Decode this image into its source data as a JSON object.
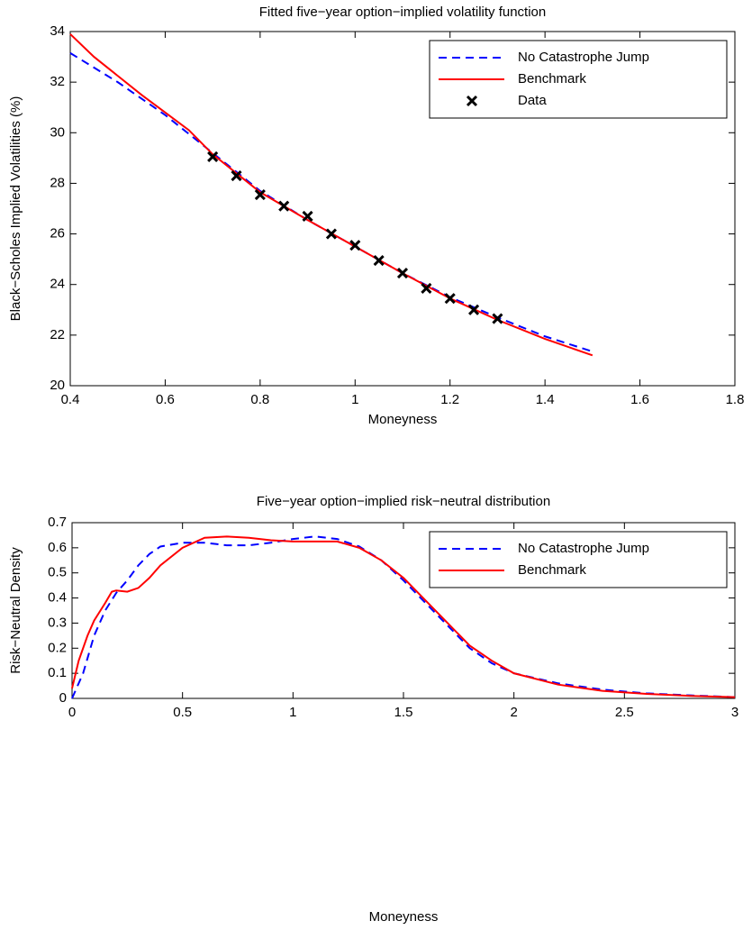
{
  "chart_data": [
    {
      "type": "line",
      "title": "Fitted five−year option−implied volatility function",
      "x_label": "Moneyness",
      "y_label": "Black−Scholes Implied Volatilities (%)",
      "xlim": [
        0.4,
        1.8
      ],
      "ylim": [
        20,
        34
      ],
      "xticks": [
        0.4,
        0.6,
        0.8,
        1,
        1.2,
        1.4,
        1.6,
        1.8
      ],
      "yticks": [
        20,
        22,
        24,
        26,
        28,
        30,
        32,
        34
      ],
      "legend": "upper right",
      "grid": false,
      "series": [
        {
          "name": "No Catastrophe Jump",
          "color": "#0000ff",
          "style": "dashed",
          "x": [
            0.4,
            0.5,
            0.6,
            0.7,
            0.8,
            0.9,
            1.0,
            1.1,
            1.2,
            1.3,
            1.4,
            1.5
          ],
          "values": [
            33.15,
            32.0,
            30.7,
            29.2,
            27.7,
            26.55,
            25.5,
            24.45,
            23.5,
            22.7,
            21.95,
            21.35
          ]
        },
        {
          "name": "Benchmark",
          "color": "#ff0000",
          "style": "solid",
          "x": [
            0.4,
            0.45,
            0.5,
            0.55,
            0.6,
            0.65,
            0.7,
            0.8,
            0.9,
            1.0,
            1.1,
            1.2,
            1.3,
            1.4,
            1.5
          ],
          "values": [
            33.9,
            33.0,
            32.25,
            31.5,
            30.8,
            30.1,
            29.15,
            27.65,
            26.55,
            25.5,
            24.45,
            23.45,
            22.6,
            21.85,
            21.2
          ]
        },
        {
          "name": "Data",
          "color": "#000000",
          "style": "marker",
          "x": [
            0.7,
            0.75,
            0.8,
            0.85,
            0.9,
            0.95,
            1.0,
            1.05,
            1.1,
            1.15,
            1.2,
            1.25,
            1.3
          ],
          "values": [
            29.05,
            28.3,
            27.55,
            27.1,
            26.7,
            26.0,
            25.55,
            24.95,
            24.45,
            23.85,
            23.45,
            23.0,
            22.65
          ]
        }
      ]
    },
    {
      "type": "line",
      "title": "Five−year option−implied risk−neutral distribution",
      "x_label": "Moneyness",
      "y_label": "Risk−Neutral Density",
      "xlim": [
        0,
        3
      ],
      "ylim": [
        0,
        0.7
      ],
      "xticks": [
        0,
        0.5,
        1,
        1.5,
        2,
        2.5,
        3
      ],
      "yticks": [
        0,
        0.1,
        0.2,
        0.3,
        0.4,
        0.5,
        0.6,
        0.7
      ],
      "legend": "upper right",
      "grid": false,
      "series": [
        {
          "name": "No Catastrophe Jump",
          "color": "#0000ff",
          "style": "dashed",
          "x": [
            0,
            0.05,
            0.1,
            0.15,
            0.2,
            0.25,
            0.3,
            0.35,
            0.4,
            0.5,
            0.6,
            0.65,
            0.7,
            0.8,
            0.9,
            1.0,
            1.1,
            1.2,
            1.3,
            1.4,
            1.5,
            1.6,
            1.7,
            1.8,
            1.9,
            2.0,
            2.2,
            2.4,
            2.6,
            2.8,
            3.0
          ],
          "values": [
            0.0,
            0.1,
            0.25,
            0.35,
            0.42,
            0.47,
            0.53,
            0.575,
            0.605,
            0.62,
            0.62,
            0.615,
            0.61,
            0.61,
            0.62,
            0.635,
            0.645,
            0.635,
            0.605,
            0.55,
            0.47,
            0.38,
            0.29,
            0.2,
            0.14,
            0.1,
            0.06,
            0.035,
            0.02,
            0.012,
            0.005
          ]
        },
        {
          "name": "Benchmark",
          "color": "#ff0000",
          "style": "solid",
          "x": [
            0,
            0.03,
            0.07,
            0.1,
            0.15,
            0.18,
            0.2,
            0.25,
            0.3,
            0.35,
            0.4,
            0.5,
            0.6,
            0.7,
            0.8,
            0.9,
            1.0,
            1.1,
            1.2,
            1.3,
            1.4,
            1.5,
            1.6,
            1.7,
            1.8,
            1.9,
            2.0,
            2.2,
            2.4,
            2.6,
            2.8,
            3.0
          ],
          "values": [
            0.04,
            0.15,
            0.25,
            0.31,
            0.38,
            0.425,
            0.43,
            0.425,
            0.44,
            0.48,
            0.53,
            0.6,
            0.64,
            0.645,
            0.64,
            0.63,
            0.625,
            0.625,
            0.625,
            0.6,
            0.55,
            0.48,
            0.39,
            0.3,
            0.21,
            0.15,
            0.1,
            0.055,
            0.03,
            0.018,
            0.01,
            0.005
          ]
        }
      ]
    }
  ]
}
